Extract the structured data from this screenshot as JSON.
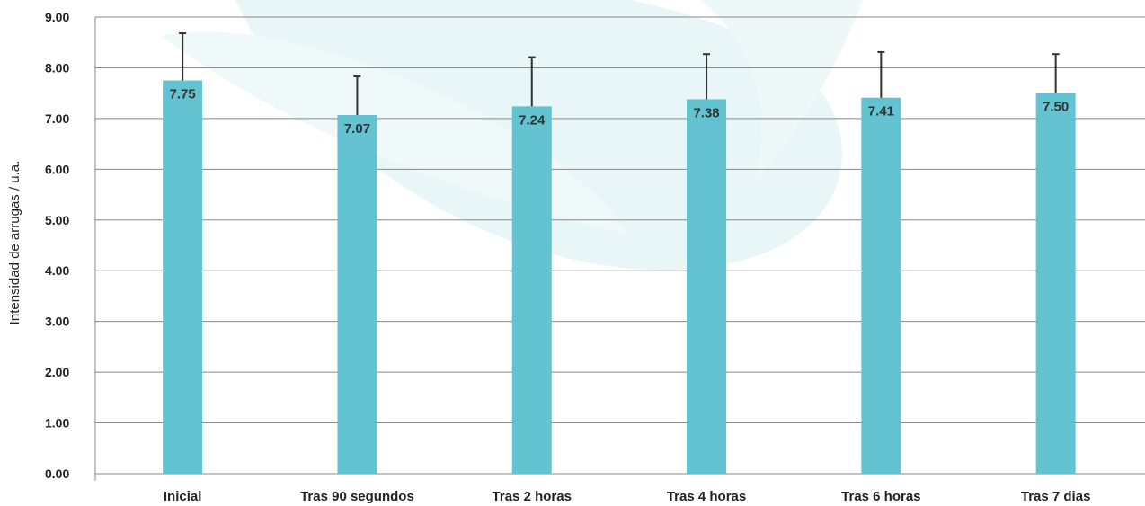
{
  "chart_data": {
    "type": "bar",
    "title": "",
    "xlabel": "",
    "ylabel": "Intensidad de arrugas / u.a.",
    "ylim": [
      0,
      9
    ],
    "yticks": [
      "0.00",
      "1.00",
      "2.00",
      "3.00",
      "4.00",
      "5.00",
      "6.00",
      "7.00",
      "8.00",
      "9.00"
    ],
    "grid": true,
    "legend": "none",
    "categories": [
      "Inicial",
      "Tras 90 segundos",
      "Tras 2 horas",
      "Tras 4 horas",
      "Tras 6 horas",
      "Tras 7 dias"
    ],
    "series": [
      {
        "values": [
          7.75,
          7.07,
          7.24,
          7.38,
          7.41,
          7.5
        ],
        "error_upper": [
          8.68,
          7.83,
          8.21,
          8.27,
          8.31,
          8.27
        ],
        "data_labels": [
          "7.75",
          "7.07",
          "7.24",
          "7.38",
          "7.41",
          "7.50"
        ],
        "color": "#63c3d1"
      }
    ],
    "colors": {
      "bar": "#63c3d1",
      "error_bar": "#333333",
      "grid": "#888888",
      "axis": "#888888",
      "watermark": "#e8f5f6"
    }
  }
}
